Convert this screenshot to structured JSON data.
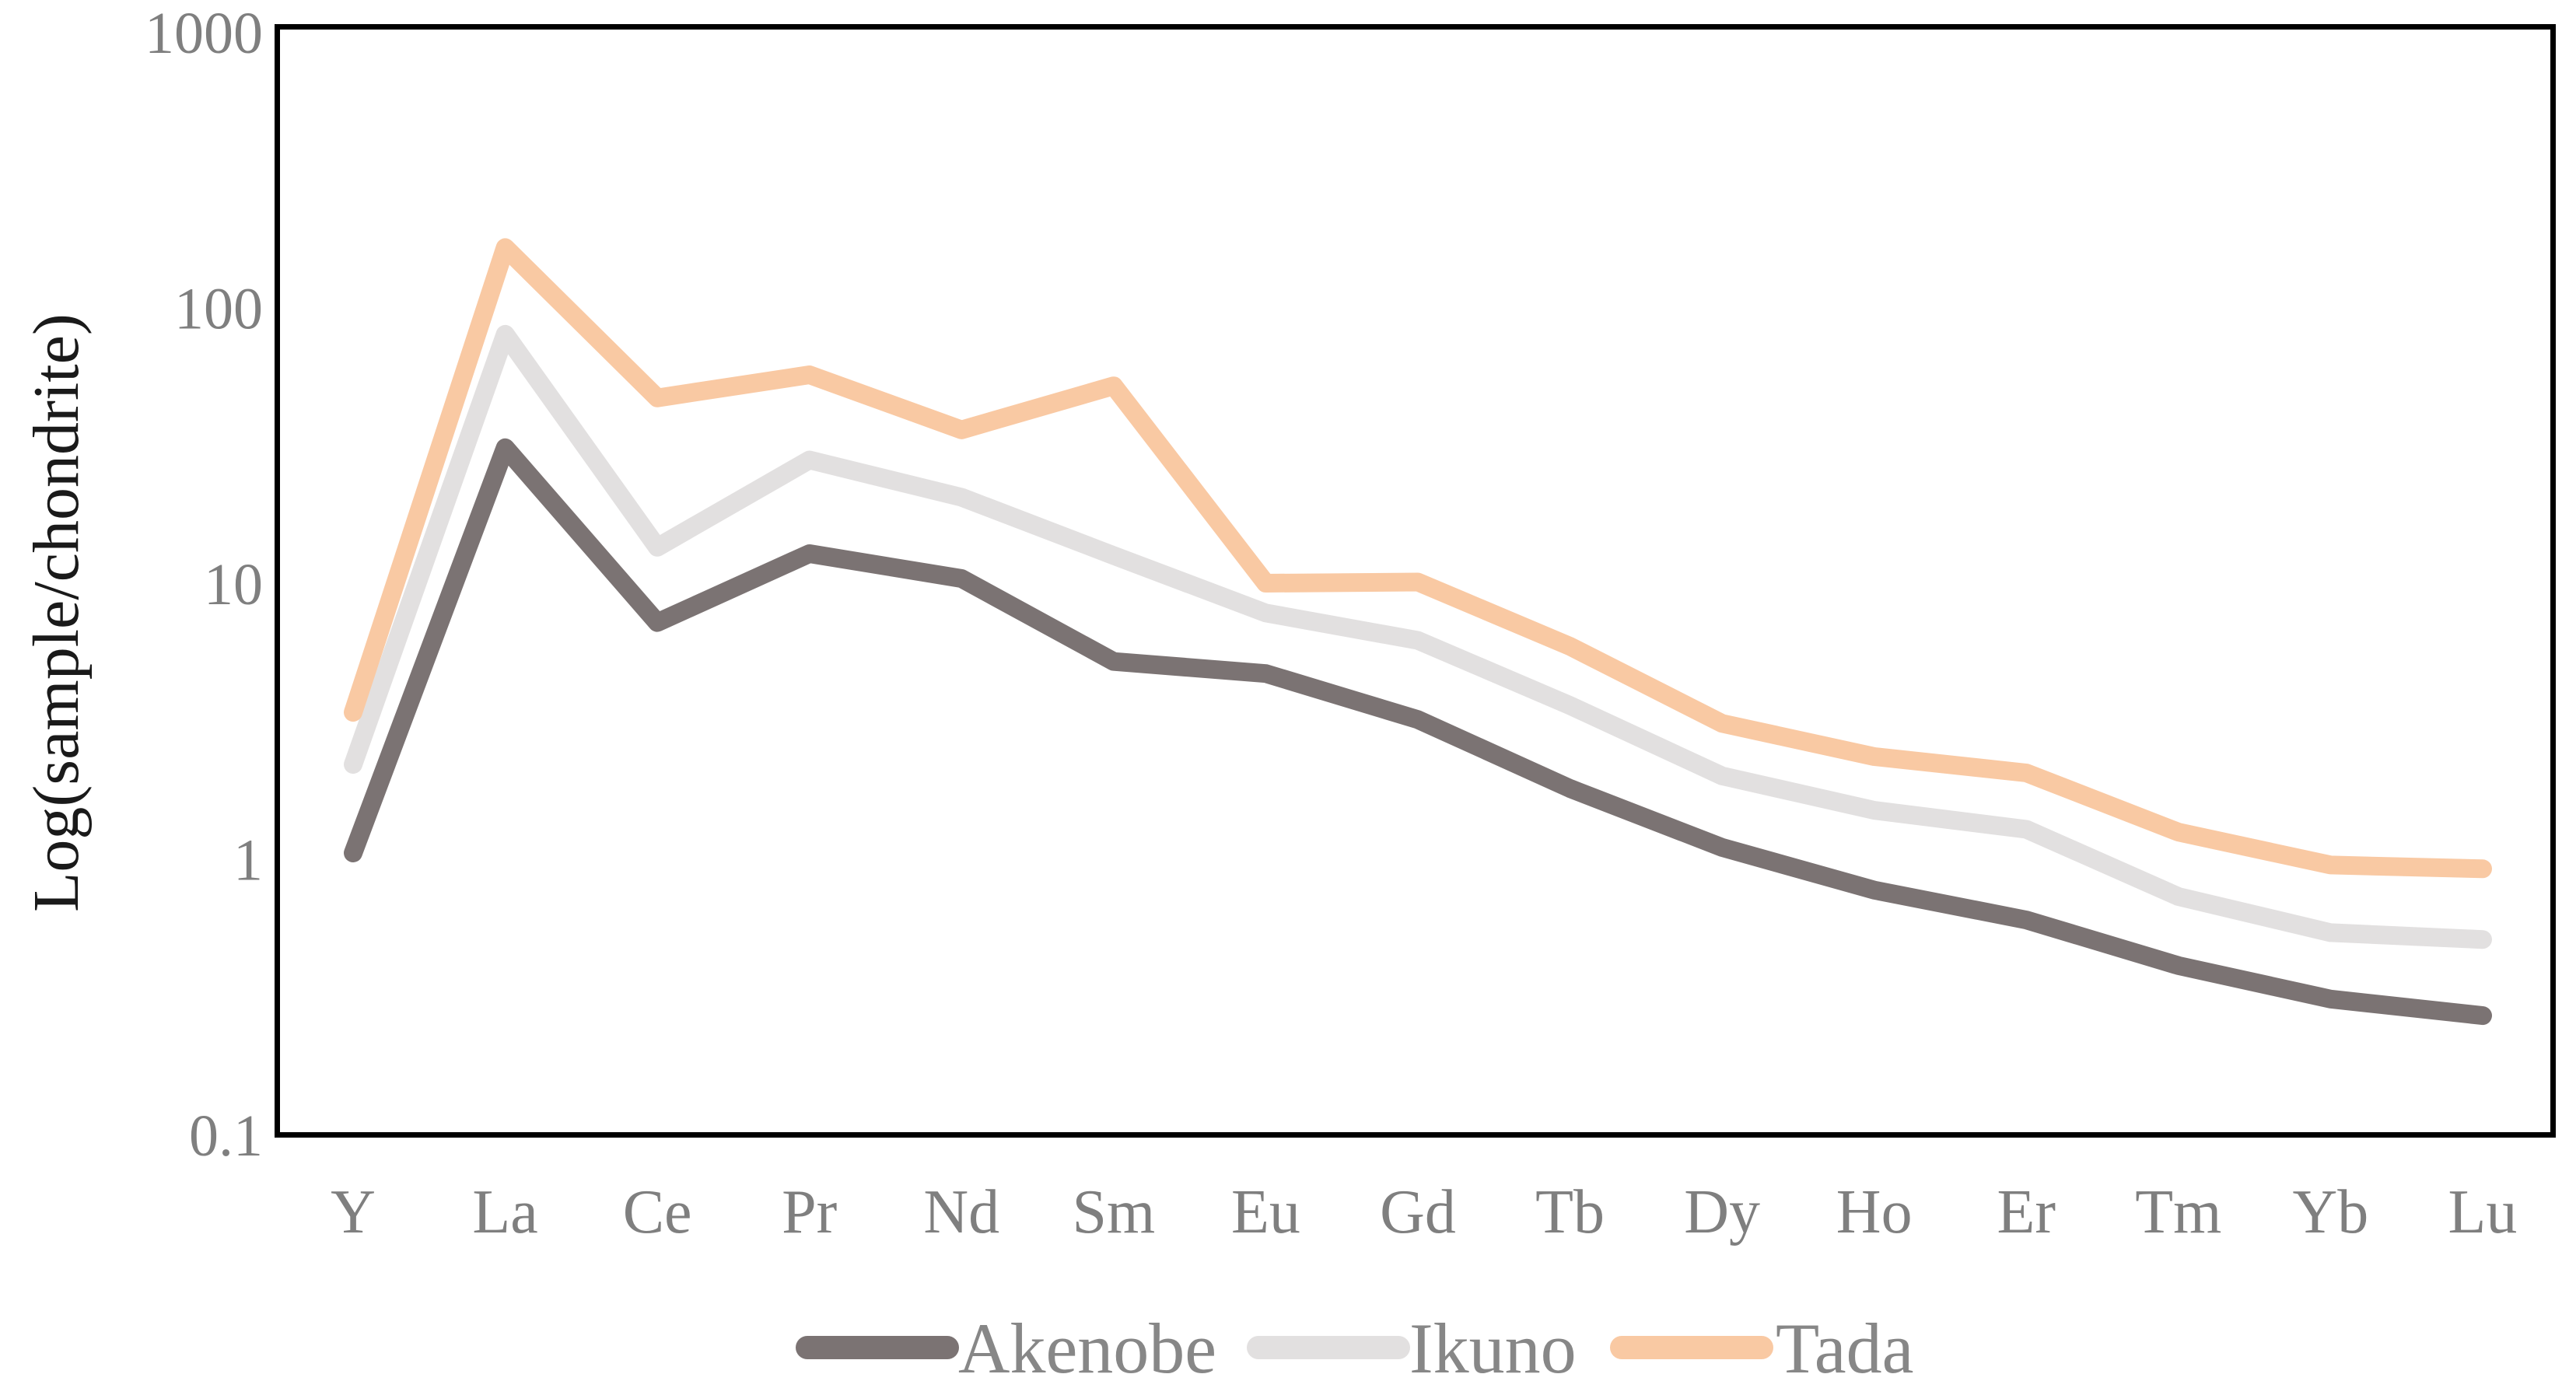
{
  "figure": {
    "background": "#ffffff",
    "plot_border_color": "#000000"
  },
  "y_axis": {
    "title": "Log(sample/chondrite)",
    "tick_labels": [
      "1000",
      "100",
      "10",
      "1",
      "0.1"
    ],
    "tick_values": [
      1000,
      100,
      10,
      1,
      0.1
    ]
  },
  "chart_data": {
    "type": "line",
    "log_scale_y": true,
    "title": "",
    "xlabel": "",
    "ylabel": "Log(sample/chondrite)",
    "ylim": [
      0.1,
      1000
    ],
    "grid": false,
    "legend_position": "bottom",
    "categories": [
      "Y",
      "La",
      "Ce",
      "Pr",
      "Nd",
      "Sm",
      "Eu",
      "Gd",
      "Tb",
      "Dy",
      "Ho",
      "Er",
      "Tm",
      "Yb",
      "Lu"
    ],
    "series": [
      {
        "name": "Akenobe",
        "color": "#7b7373",
        "values": [
          1.05,
          31,
          7.2,
          12.8,
          10.4,
          5.2,
          4.7,
          3.2,
          1.8,
          1.1,
          0.77,
          0.6,
          0.41,
          0.31,
          0.27
        ]
      },
      {
        "name": "Ikuno",
        "color": "#e2e0e0",
        "values": [
          2.2,
          80,
          13.5,
          28,
          20.5,
          12.6,
          7.8,
          6.2,
          3.6,
          2.0,
          1.5,
          1.28,
          0.73,
          0.54,
          0.51
        ]
      },
      {
        "name": "Tada",
        "color": "#f9c9a3",
        "values": [
          3.4,
          165,
          47,
          57,
          36,
          52,
          10,
          10.1,
          5.9,
          3.1,
          2.35,
          2.05,
          1.25,
          0.95,
          0.92
        ]
      }
    ]
  },
  "legend": {
    "items": [
      "Akenobe",
      "Ikuno",
      "Tada"
    ]
  },
  "text_colors": {
    "tick_text": "#7f7f7f",
    "category_text": "#7f7f7f",
    "ylabel_text": "#1a1a1a",
    "legend_text": "#878787"
  }
}
